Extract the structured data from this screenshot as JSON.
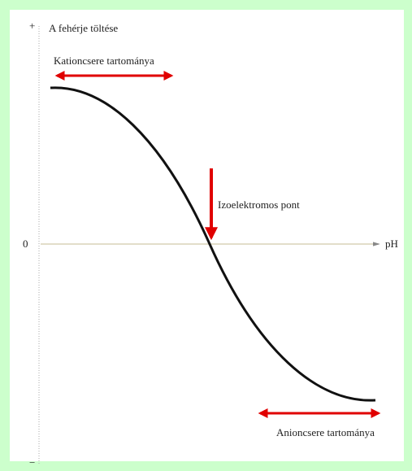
{
  "y_axis": {
    "top": "+",
    "label": "A fehérje töltése",
    "zero": "0",
    "bottom": "−"
  },
  "x_axis": {
    "label": "pH"
  },
  "annotations": {
    "cation": "Kationcsere tartománya",
    "isoelectric": "Izoelektromos pont",
    "anion": "Anioncsere tartománya"
  }
}
